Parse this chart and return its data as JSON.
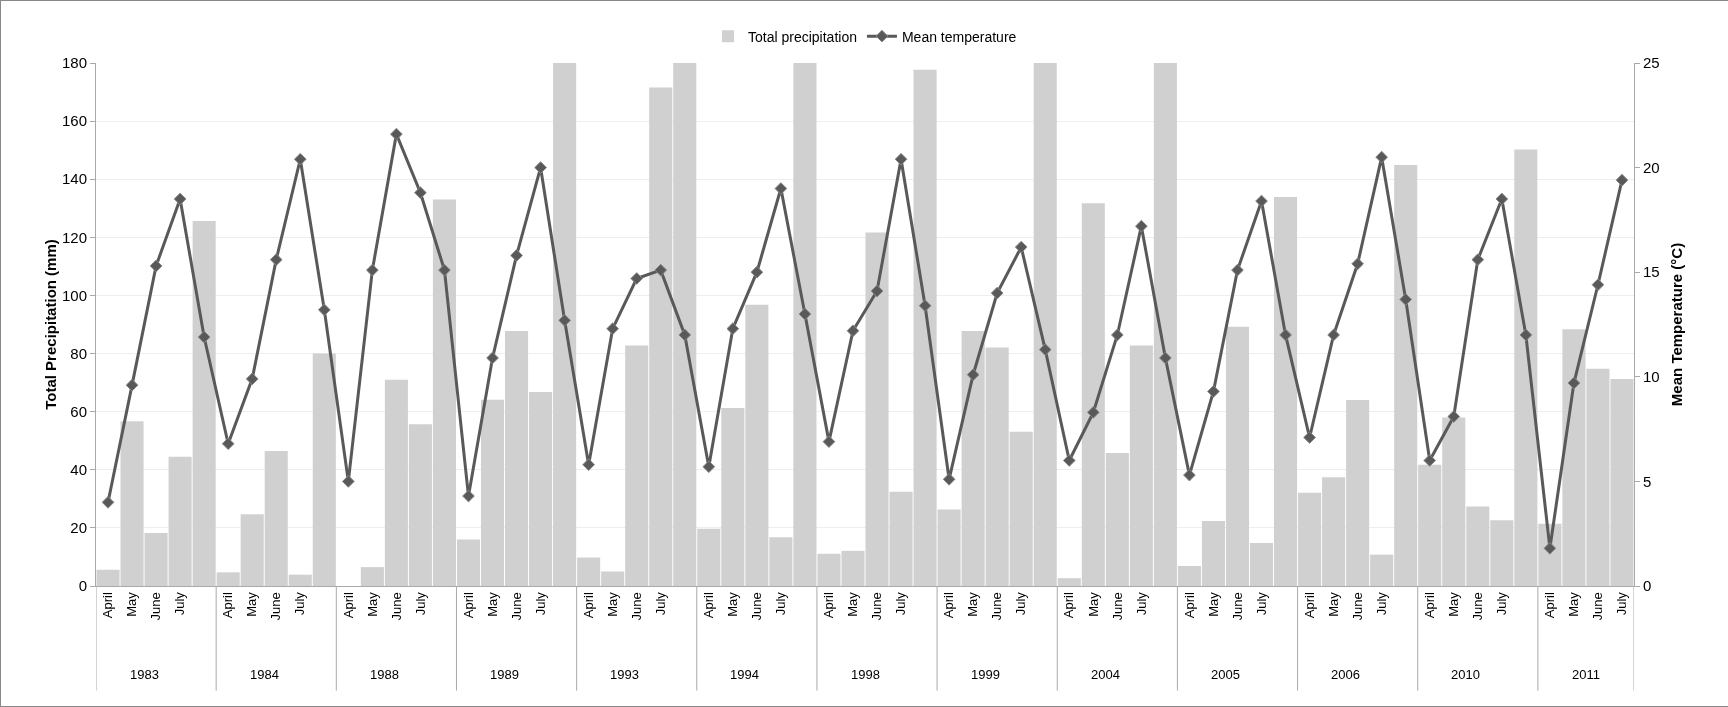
{
  "chart_data": {
    "type": "bar",
    "categories": [
      "April",
      "May",
      "June",
      "July",
      null,
      "April",
      "May",
      "June",
      "July",
      null,
      "April",
      "May",
      "June",
      "July",
      null,
      "April",
      "May",
      "June",
      "July",
      null,
      "April",
      "May",
      "June",
      "July",
      null,
      "April",
      "May",
      "June",
      "July",
      null,
      "April",
      "May",
      "June",
      "July",
      null,
      "April",
      "May",
      "June",
      "July",
      null,
      "April",
      "May",
      "June",
      "July",
      null,
      "April",
      "May",
      "June",
      "July",
      null,
      "April",
      "May",
      "June",
      "July",
      null,
      "April",
      "May",
      "June",
      "July",
      null,
      "April",
      "May",
      "June",
      "July"
    ],
    "series": [
      {
        "name": "Total precipitation",
        "color": "#d0d0d0",
        "values": [
          5.6,
          56.7,
          18.2,
          44.5,
          125.6,
          4.7,
          24.7,
          46.5,
          3.9,
          80,
          0,
          6.5,
          71,
          55.7,
          133,
          16,
          64.1,
          87.8,
          66.8,
          180,
          9.8,
          5,
          82.8,
          171.6,
          180,
          19.7,
          61.3,
          96.8,
          16.8,
          180,
          11.1,
          12.1,
          121.7,
          32.4,
          177.7,
          26.3,
          87.8,
          82.1,
          53.1,
          180,
          2.7,
          131.7,
          45.8,
          82.8,
          180,
          6.9,
          22.4,
          89.2,
          14.8,
          133.9,
          32.1,
          37.4,
          64,
          10.8,
          144.9,
          41.7,
          58,
          27.4,
          22.6,
          150.2,
          21.4,
          88.4,
          74.8,
          71.2
        ]
      },
      {
        "name": "Mean temperature",
        "type": "line",
        "axis": "y2",
        "color": "#595959",
        "values": [
          4.0,
          9.6,
          15.3,
          18.5,
          11.9,
          6.8,
          9.9,
          15.6,
          20.4,
          13.2,
          5.0,
          15.1,
          21.6,
          18.8,
          15.1,
          4.3,
          10.9,
          15.8,
          20.0,
          12.7,
          5.8,
          12.3,
          14.7,
          15.1,
          12.0,
          5.7,
          12.3,
          15.0,
          19.0,
          13.0,
          6.9,
          12.2,
          14.1,
          20.4,
          13.4,
          5.1,
          10.1,
          14.0,
          16.2,
          11.3,
          6.0,
          8.3,
          12.0,
          17.2,
          10.9,
          5.3,
          9.3,
          15.1,
          18.4,
          12.0,
          7.1,
          12.0,
          15.4,
          20.5,
          13.7,
          6.0,
          8.1,
          15.6,
          18.5,
          12.0,
          1.8,
          9.7,
          14.4,
          19.4
        ]
      }
    ],
    "annotations": [
      "1983",
      "1984",
      "1988",
      "1989",
      "1993",
      "1994",
      "1998",
      "1999",
      "2004",
      "2005",
      "2006",
      "2010",
      "2011"
    ],
    "ylabel": "Total Precipitation (mm)",
    "y2label": "Mean Temperature (°C)",
    "ylim": [
      0,
      180
    ],
    "yticks": [
      0,
      20,
      40,
      60,
      80,
      100,
      120,
      140,
      160,
      180
    ],
    "y2lim": [
      0,
      25
    ],
    "y2ticks": [
      0,
      5,
      10,
      15,
      20,
      25
    ],
    "grid": "y",
    "legend": "top",
    "marker": "diamond",
    "line_style": "solid"
  }
}
